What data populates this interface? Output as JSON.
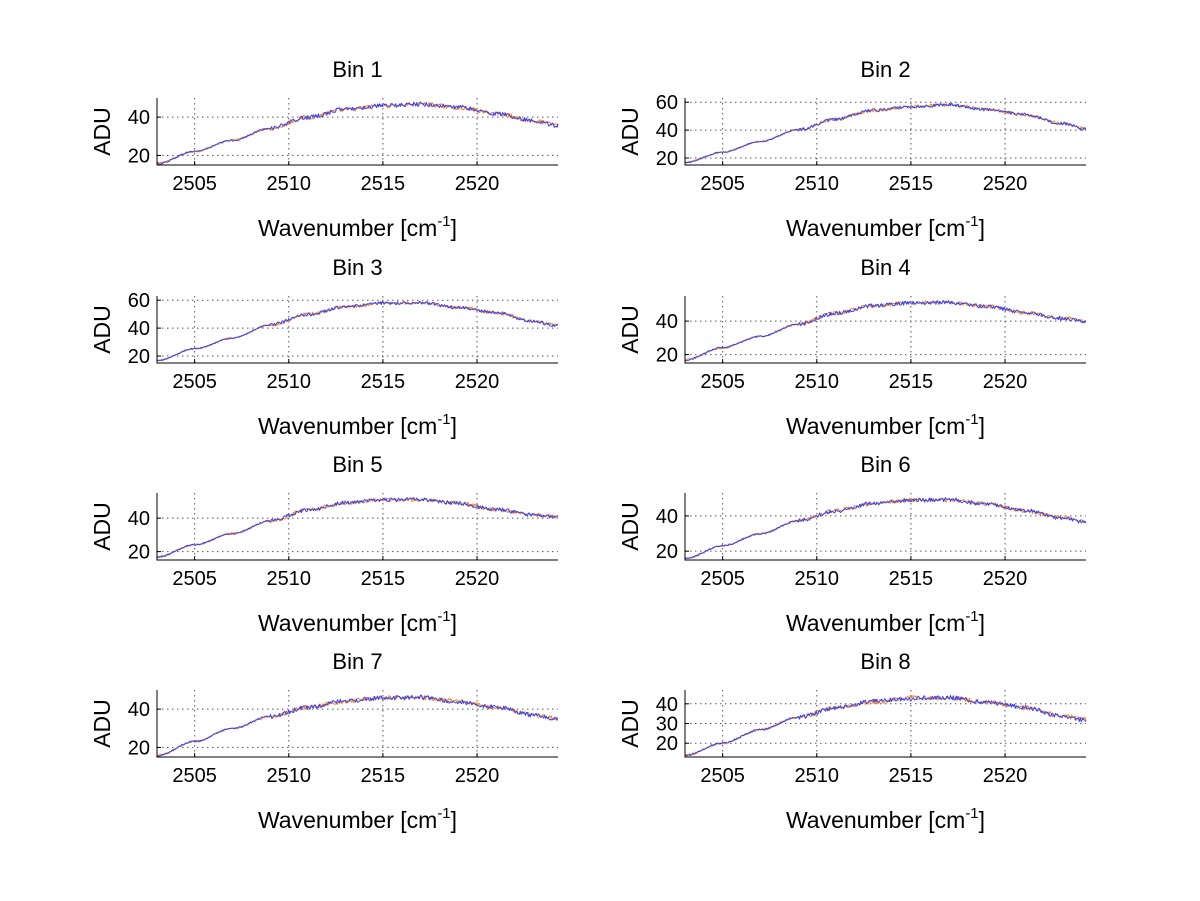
{
  "chart_data": [
    {
      "type": "line",
      "title": "Bin 1",
      "xlabel": "Wavenumber [cm",
      "xlabel_sup": "-1",
      "xlabel_close": "]",
      "ylabel": "ADU",
      "xlim": [
        2503,
        2524.3
      ],
      "ylim": [
        15,
        50
      ],
      "xticks": [
        2505,
        2510,
        2515,
        2520
      ],
      "yticks": [
        20,
        40
      ],
      "series": [
        {
          "color": "#ff7a00",
          "x": [
            2503,
            2505,
            2507,
            2509,
            2511,
            2513,
            2515,
            2517,
            2519,
            2521,
            2523,
            2524.3
          ],
          "y": [
            16,
            22,
            28,
            34,
            40,
            44,
            46,
            47,
            45,
            42,
            38,
            36
          ]
        },
        {
          "color": "#2a3cff",
          "x": [
            2503,
            2505,
            2507,
            2509,
            2511,
            2513,
            2515,
            2517,
            2519,
            2521,
            2523,
            2524.3
          ],
          "y": [
            15.6,
            22.2,
            27.8,
            34.3,
            39.8,
            44.2,
            45.9,
            46.7,
            45.2,
            41.8,
            38.2,
            35.6
          ]
        }
      ]
    },
    {
      "type": "line",
      "title": "Bin 2",
      "xlabel": "Wavenumber [cm",
      "xlabel_sup": "-1",
      "xlabel_close": "]",
      "ylabel": "ADU",
      "xlim": [
        2503,
        2524.3
      ],
      "ylim": [
        15,
        63
      ],
      "xticks": [
        2505,
        2510,
        2515,
        2520
      ],
      "yticks": [
        20,
        40,
        60
      ],
      "series": [
        {
          "color": "#ff7a00",
          "x": [
            2503,
            2505,
            2507,
            2509,
            2511,
            2513,
            2515,
            2517,
            2519,
            2521,
            2523,
            2524.3
          ],
          "y": [
            17,
            24,
            32,
            40,
            48,
            54,
            57,
            58,
            55,
            51,
            45,
            41
          ]
        },
        {
          "color": "#2a3cff",
          "x": [
            2503,
            2505,
            2507,
            2509,
            2511,
            2513,
            2515,
            2517,
            2519,
            2521,
            2523,
            2524.3
          ],
          "y": [
            16.7,
            24.3,
            31.7,
            40.3,
            47.7,
            54.3,
            56.8,
            58.2,
            54.7,
            51.3,
            44.8,
            40.6
          ]
        }
      ]
    },
    {
      "type": "line",
      "title": "Bin 3",
      "xlabel": "Wavenumber [cm",
      "xlabel_sup": "-1",
      "xlabel_close": "]",
      "ylabel": "ADU",
      "xlim": [
        2503,
        2524.3
      ],
      "ylim": [
        15,
        63
      ],
      "xticks": [
        2505,
        2510,
        2515,
        2520
      ],
      "yticks": [
        20,
        40,
        60
      ],
      "series": [
        {
          "color": "#ff7a00",
          "x": [
            2503,
            2505,
            2507,
            2509,
            2511,
            2513,
            2515,
            2517,
            2519,
            2521,
            2523,
            2524.3
          ],
          "y": [
            17,
            25,
            33,
            42,
            50,
            55,
            58,
            58,
            55,
            51,
            45,
            42
          ]
        },
        {
          "color": "#2a3cff",
          "x": [
            2503,
            2505,
            2507,
            2509,
            2511,
            2513,
            2515,
            2517,
            2519,
            2521,
            2523,
            2524.3
          ],
          "y": [
            16.6,
            25.3,
            32.7,
            42.4,
            49.6,
            55.3,
            57.8,
            58.3,
            54.6,
            51.2,
            44.7,
            41.7
          ]
        }
      ]
    },
    {
      "type": "line",
      "title": "Bin 4",
      "xlabel": "Wavenumber [cm",
      "xlabel_sup": "-1",
      "xlabel_close": "]",
      "ylabel": "ADU",
      "xlim": [
        2503,
        2524.3
      ],
      "ylim": [
        15,
        55
      ],
      "xticks": [
        2505,
        2510,
        2515,
        2520
      ],
      "yticks": [
        20,
        40
      ],
      "series": [
        {
          "color": "#ff7a00",
          "x": [
            2503,
            2505,
            2507,
            2509,
            2511,
            2513,
            2515,
            2517,
            2519,
            2521,
            2523,
            2524.3
          ],
          "y": [
            17,
            24,
            31,
            38,
            45,
            49,
            51,
            51,
            49,
            45,
            42,
            40
          ]
        },
        {
          "color": "#2a3cff",
          "x": [
            2503,
            2505,
            2507,
            2509,
            2511,
            2513,
            2515,
            2517,
            2519,
            2521,
            2523,
            2524.3
          ],
          "y": [
            16.7,
            24.3,
            30.8,
            38.2,
            44.7,
            49.3,
            50.8,
            51.2,
            48.8,
            45.3,
            41.7,
            39.7
          ]
        }
      ]
    },
    {
      "type": "line",
      "title": "Bin 5",
      "xlabel": "Wavenumber [cm",
      "xlabel_sup": "-1",
      "xlabel_close": "]",
      "ylabel": "ADU",
      "xlim": [
        2503,
        2524.3
      ],
      "ylim": [
        15,
        55
      ],
      "xticks": [
        2505,
        2510,
        2515,
        2520
      ],
      "yticks": [
        20,
        40
      ],
      "series": [
        {
          "color": "#ff7a00",
          "x": [
            2503,
            2505,
            2507,
            2509,
            2511,
            2513,
            2515,
            2517,
            2519,
            2521,
            2523,
            2524.3
          ],
          "y": [
            17,
            24,
            31,
            38,
            45,
            49,
            51,
            51,
            49,
            45,
            42,
            41
          ]
        },
        {
          "color": "#2a3cff",
          "x": [
            2503,
            2505,
            2507,
            2509,
            2511,
            2513,
            2515,
            2517,
            2519,
            2521,
            2523,
            2524.3
          ],
          "y": [
            16.6,
            24.2,
            30.7,
            38.3,
            44.8,
            49.2,
            50.9,
            51.2,
            48.7,
            45.3,
            41.8,
            40.7
          ]
        }
      ]
    },
    {
      "type": "line",
      "title": "Bin 6",
      "xlabel": "Wavenumber [cm",
      "xlabel_sup": "-1",
      "xlabel_close": "]",
      "ylabel": "ADU",
      "xlim": [
        2503,
        2524.3
      ],
      "ylim": [
        15,
        53
      ],
      "xticks": [
        2505,
        2510,
        2515,
        2520
      ],
      "yticks": [
        20,
        40
      ],
      "series": [
        {
          "color": "#ff7a00",
          "x": [
            2503,
            2505,
            2507,
            2509,
            2511,
            2513,
            2515,
            2517,
            2519,
            2521,
            2523,
            2524.3
          ],
          "y": [
            16,
            23,
            30,
            37,
            43,
            47,
            49,
            49,
            47,
            43,
            39,
            37
          ]
        },
        {
          "color": "#2a3cff",
          "x": [
            2503,
            2505,
            2507,
            2509,
            2511,
            2513,
            2515,
            2517,
            2519,
            2521,
            2523,
            2524.3
          ],
          "y": [
            15.7,
            23.2,
            29.8,
            37.3,
            42.8,
            47.2,
            48.8,
            49.3,
            46.7,
            43.2,
            38.8,
            36.6
          ]
        }
      ]
    },
    {
      "type": "line",
      "title": "Bin 7",
      "xlabel": "Wavenumber [cm",
      "xlabel_sup": "-1",
      "xlabel_close": "]",
      "ylabel": "ADU",
      "xlim": [
        2503,
        2524.3
      ],
      "ylim": [
        15,
        50
      ],
      "xticks": [
        2505,
        2510,
        2515,
        2520
      ],
      "yticks": [
        20,
        40
      ],
      "series": [
        {
          "color": "#ff7a00",
          "x": [
            2503,
            2505,
            2507,
            2509,
            2511,
            2513,
            2515,
            2517,
            2519,
            2521,
            2523,
            2524.3
          ],
          "y": [
            16,
            23,
            30,
            36,
            41,
            44,
            46,
            46,
            44,
            41,
            37,
            35
          ]
        },
        {
          "color": "#2a3cff",
          "x": [
            2503,
            2505,
            2507,
            2509,
            2511,
            2513,
            2515,
            2517,
            2519,
            2521,
            2523,
            2524.3
          ],
          "y": [
            15.7,
            23.2,
            29.8,
            36.3,
            40.8,
            44.3,
            45.8,
            46.2,
            43.7,
            41.2,
            36.8,
            34.6
          ]
        }
      ]
    },
    {
      "type": "line",
      "title": "Bin 8",
      "xlabel": "Wavenumber [cm",
      "xlabel_sup": "-1",
      "xlabel_close": "]",
      "ylabel": "ADU",
      "xlim": [
        2503,
        2524.3
      ],
      "ylim": [
        13,
        47
      ],
      "xticks": [
        2505,
        2510,
        2515,
        2520
      ],
      "yticks": [
        20,
        30,
        40
      ],
      "series": [
        {
          "color": "#ff7a00",
          "x": [
            2503,
            2505,
            2507,
            2509,
            2511,
            2513,
            2515,
            2517,
            2519,
            2521,
            2523,
            2524.3
          ],
          "y": [
            14,
            20,
            27,
            33,
            38,
            41,
            43,
            43,
            41,
            38,
            34,
            32
          ]
        },
        {
          "color": "#2a3cff",
          "x": [
            2503,
            2505,
            2507,
            2509,
            2511,
            2513,
            2515,
            2517,
            2519,
            2521,
            2523,
            2524.3
          ],
          "y": [
            13.7,
            20.2,
            26.8,
            33.2,
            37.8,
            41.3,
            42.8,
            43.2,
            40.8,
            38.2,
            33.8,
            31.7
          ]
        }
      ]
    }
  ]
}
